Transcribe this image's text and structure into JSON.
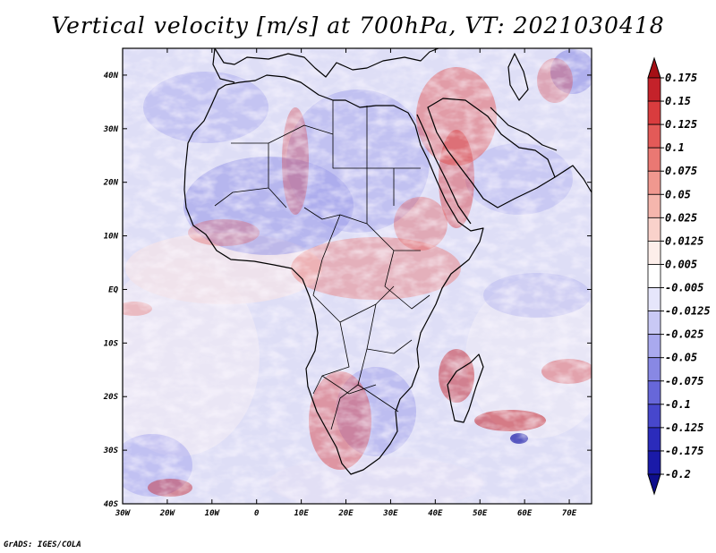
{
  "title": "Vertical velocity [m/s] at 700hPa, VT: 2021030418",
  "credit": "GrADS: IGES/COLA",
  "map": {
    "variable": "Vertical velocity",
    "units": "m/s",
    "level": "700hPa",
    "valid_time": "2021030418",
    "lon_range": [
      -30,
      75
    ],
    "lat_range": [
      -40,
      45
    ],
    "lat_ticks": [
      {
        "value": 40,
        "label": "40N"
      },
      {
        "value": 30,
        "label": "30N"
      },
      {
        "value": 20,
        "label": "20N"
      },
      {
        "value": 10,
        "label": "10N"
      },
      {
        "value": 0,
        "label": "EQ"
      },
      {
        "value": -10,
        "label": "10S"
      },
      {
        "value": -20,
        "label": "20S"
      },
      {
        "value": -30,
        "label": "30S"
      },
      {
        "value": -40,
        "label": "40S"
      }
    ],
    "lon_ticks": [
      {
        "value": -30,
        "label": "30W"
      },
      {
        "value": -20,
        "label": "20W"
      },
      {
        "value": -10,
        "label": "10W"
      },
      {
        "value": 0,
        "label": "0"
      },
      {
        "value": 10,
        "label": "10E"
      },
      {
        "value": 20,
        "label": "20E"
      },
      {
        "value": 30,
        "label": "30E"
      },
      {
        "value": 40,
        "label": "40E"
      },
      {
        "value": 50,
        "label": "50E"
      },
      {
        "value": 60,
        "label": "60E"
      },
      {
        "value": 70,
        "label": "70E"
      }
    ]
  },
  "colorbar": {
    "labels": [
      "0.175",
      "0.15",
      "0.125",
      "0.1",
      "0.075",
      "0.05",
      "0.025",
      "0.0125",
      "0.005",
      "-0.005",
      "-0.0125",
      "-0.025",
      "-0.05",
      "-0.075",
      "-0.1",
      "-0.125",
      "-0.175",
      "-0.2"
    ],
    "colors": [
      "#a50f15",
      "#c4222a",
      "#d93c3e",
      "#e35a58",
      "#ea7873",
      "#f0988f",
      "#f5b6ad",
      "#f9d2cb",
      "#fdeeea",
      "#ffffff",
      "#e6e6fb",
      "#c9c9f5",
      "#a9a9ee",
      "#8888e4",
      "#6767d9",
      "#4747cc",
      "#2b2bbb",
      "#1a1aa8",
      "#0e0e8c"
    ]
  }
}
